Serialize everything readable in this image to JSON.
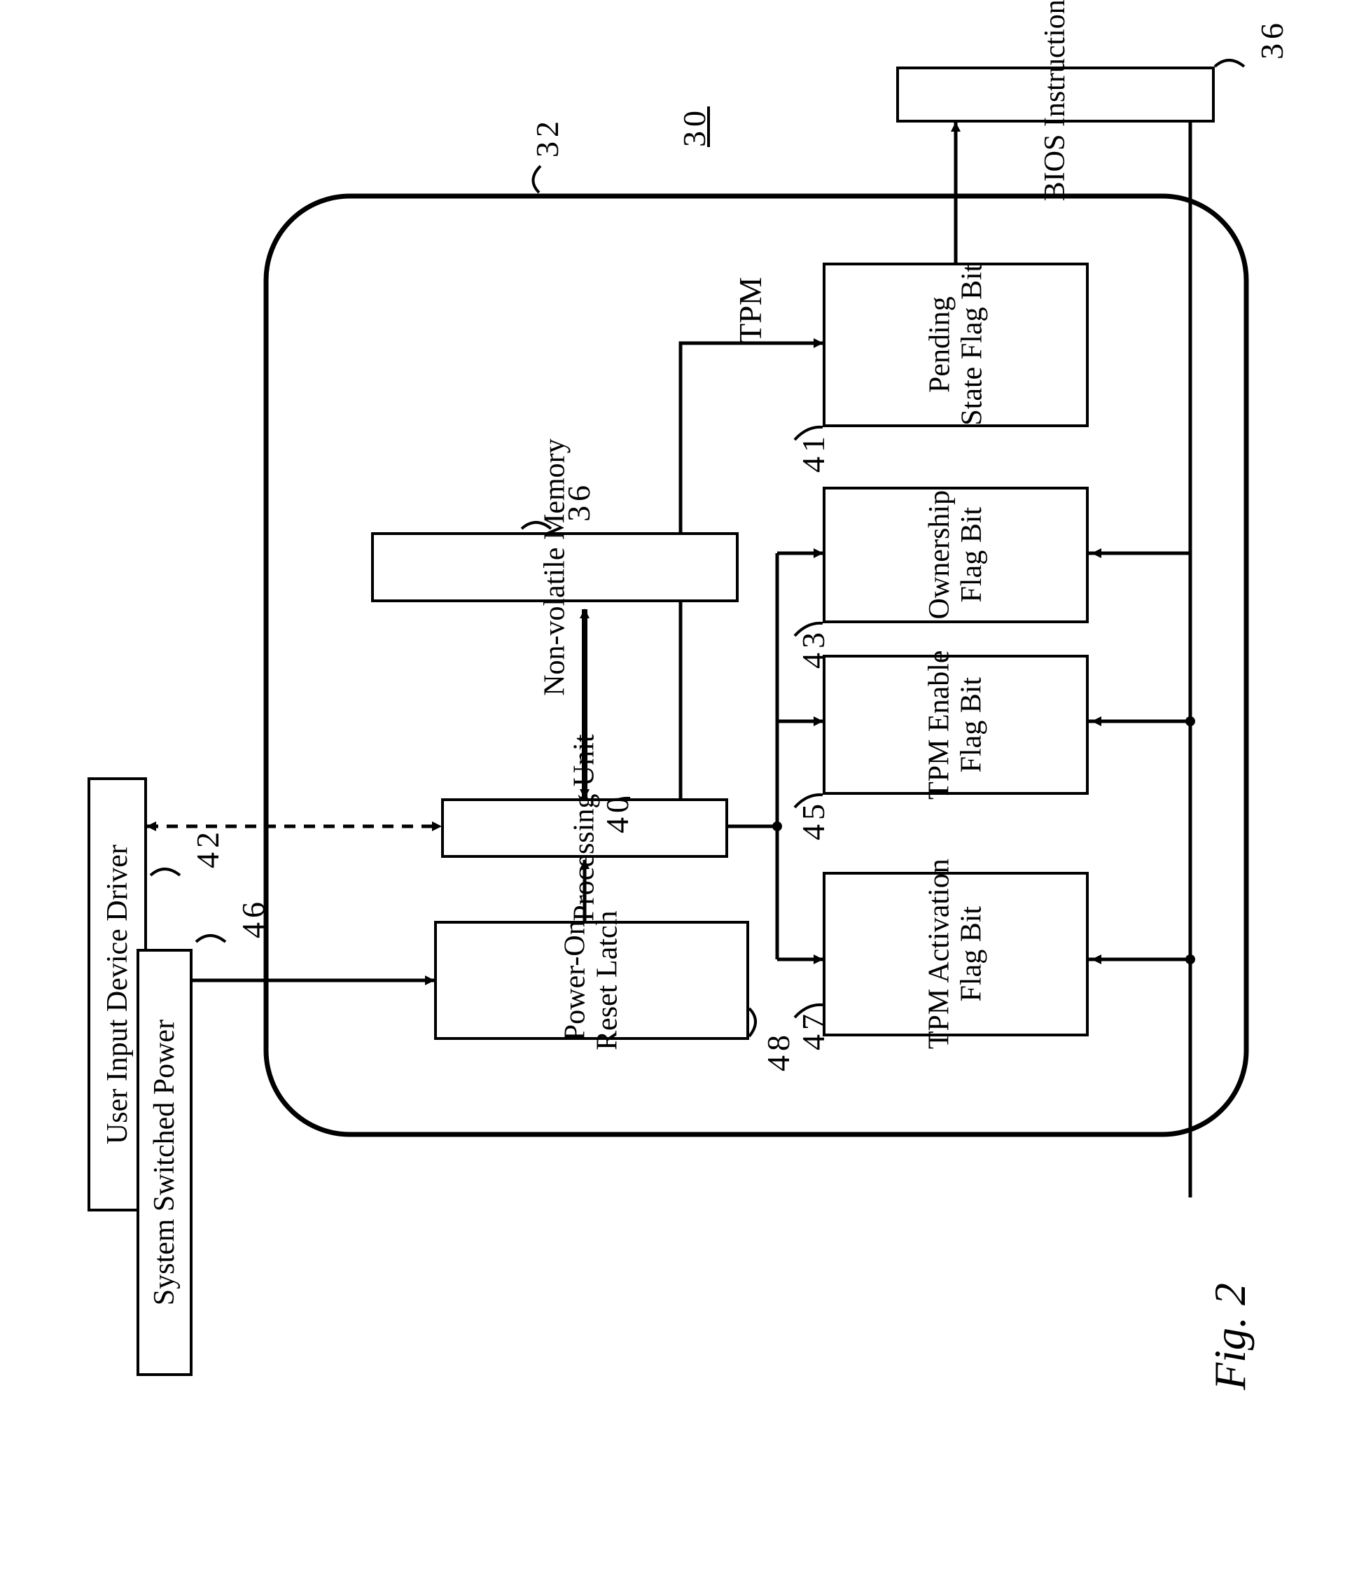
{
  "figure_label": "Fig. 2",
  "module_ref": "30",
  "tpm_label": "TPM",
  "tpm_ref": "32",
  "boxes": {
    "bios": {
      "label": "BIOS Instructions",
      "ref": "36"
    },
    "pending": {
      "label": "Pending\nState Flag Bit",
      "ref": "41"
    },
    "ownership": {
      "label": "Ownership\nFlag Bit",
      "ref": "43"
    },
    "tpm_enable": {
      "label": "TPM Enable\nFlag Bit",
      "ref": "45"
    },
    "tpm_activation": {
      "label": "TPM Activation\nFlag Bit",
      "ref": "47"
    },
    "nvm": {
      "label": "Non-volatile Memory",
      "ref": "36"
    },
    "processing": {
      "label": "Processing Unit",
      "ref": "40"
    },
    "por_latch": {
      "label": "Power-On\nReset Latch",
      "ref": "48"
    },
    "user_input": {
      "label": "User Input Device Driver",
      "ref": "42"
    },
    "sys_power": {
      "label": "System Switched Power",
      "ref": "46"
    }
  },
  "styling": {
    "stroke": "#000000",
    "stroke_width": 5,
    "dash": "14 10",
    "curly_stroke_width": 4
  }
}
